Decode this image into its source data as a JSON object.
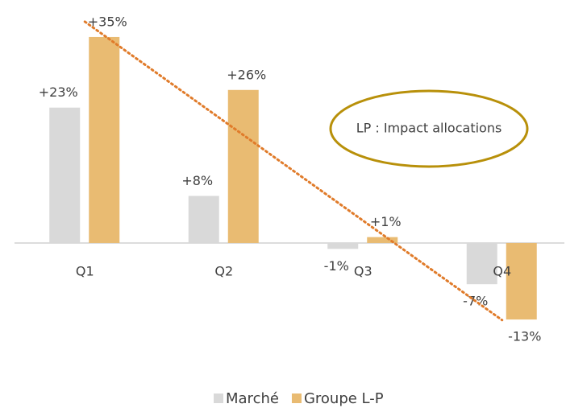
{
  "chart_data": {
    "type": "bar",
    "categories": [
      "Q1",
      "Q2",
      "Q3",
      "Q4"
    ],
    "series": [
      {
        "name": "Marché",
        "color": "#d9d9d9",
        "values": [
          23,
          8,
          -1,
          -7
        ],
        "value_labels": [
          "+23%",
          "+8%",
          "-1%",
          "-7%"
        ]
      },
      {
        "name": "Groupe L-P",
        "color": "#e9bb72",
        "values": [
          35,
          26,
          1,
          -13
        ],
        "value_labels": [
          "+35%",
          "+26%",
          "+1%",
          "-13%"
        ]
      }
    ],
    "ylim": [
      -16,
      38
    ],
    "trendline": {
      "series": "Groupe L-P",
      "color": "#e07b2a"
    },
    "annotation": "LP : Impact allocations",
    "legend": "bottom"
  }
}
